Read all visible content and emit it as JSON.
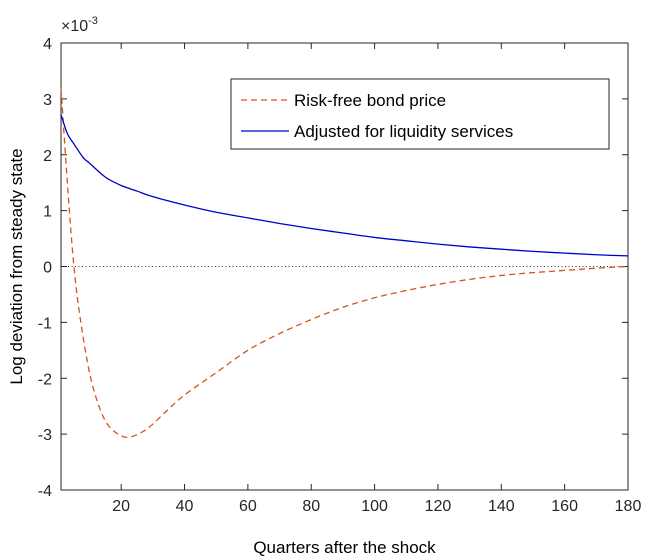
{
  "chart_data": {
    "type": "line",
    "xlabel": "Quarters after the shock",
    "ylabel": "Log deviation from steady state",
    "y_exponent_label": "×10",
    "y_exponent_power": "-3",
    "xlim": [
      1,
      180
    ],
    "ylim": [
      -4,
      4
    ],
    "x_ticks": [
      20,
      40,
      60,
      80,
      100,
      120,
      140,
      160,
      180
    ],
    "x_tick_labels": [
      "20",
      "40",
      "60",
      "80",
      "100",
      "120",
      "140",
      "160",
      "180"
    ],
    "y_ticks": [
      -4,
      -3,
      -2,
      -1,
      0,
      1,
      2,
      3,
      4
    ],
    "y_tick_labels": [
      "-4",
      "-3",
      "-2",
      "-1",
      "0",
      "1",
      "2",
      "3",
      "4"
    ],
    "y_scale_note": "values in units of 1e-3",
    "grid": false,
    "zero_line": true,
    "legend_position": "top-right",
    "series": [
      {
        "name": "Risk-free bond price",
        "color": "#d95319",
        "style": "dashed",
        "x": [
          1,
          3,
          5,
          7,
          10,
          13,
          16,
          20,
          23,
          27,
          30,
          35,
          40,
          50,
          60,
          70,
          80,
          90,
          100,
          110,
          120,
          130,
          140,
          150,
          160,
          170,
          180
        ],
        "y": [
          3.2,
          1.5,
          0.05,
          -0.9,
          -1.9,
          -2.5,
          -2.85,
          -3.03,
          -3.05,
          -2.95,
          -2.82,
          -2.55,
          -2.3,
          -1.9,
          -1.5,
          -1.2,
          -0.95,
          -0.73,
          -0.56,
          -0.43,
          -0.32,
          -0.23,
          -0.16,
          -0.11,
          -0.07,
          -0.03,
          0.0
        ]
      },
      {
        "name": "Adjusted for liquidity services",
        "color": "#0000cc",
        "style": "solid",
        "x": [
          1,
          3,
          5,
          8,
          10,
          15,
          20,
          25,
          30,
          40,
          50,
          60,
          70,
          80,
          90,
          100,
          110,
          120,
          130,
          140,
          150,
          160,
          170,
          180
        ],
        "y": [
          2.72,
          2.38,
          2.2,
          1.95,
          1.85,
          1.6,
          1.45,
          1.35,
          1.25,
          1.1,
          0.97,
          0.87,
          0.77,
          0.68,
          0.6,
          0.52,
          0.46,
          0.4,
          0.35,
          0.31,
          0.27,
          0.24,
          0.21,
          0.19
        ]
      }
    ]
  }
}
